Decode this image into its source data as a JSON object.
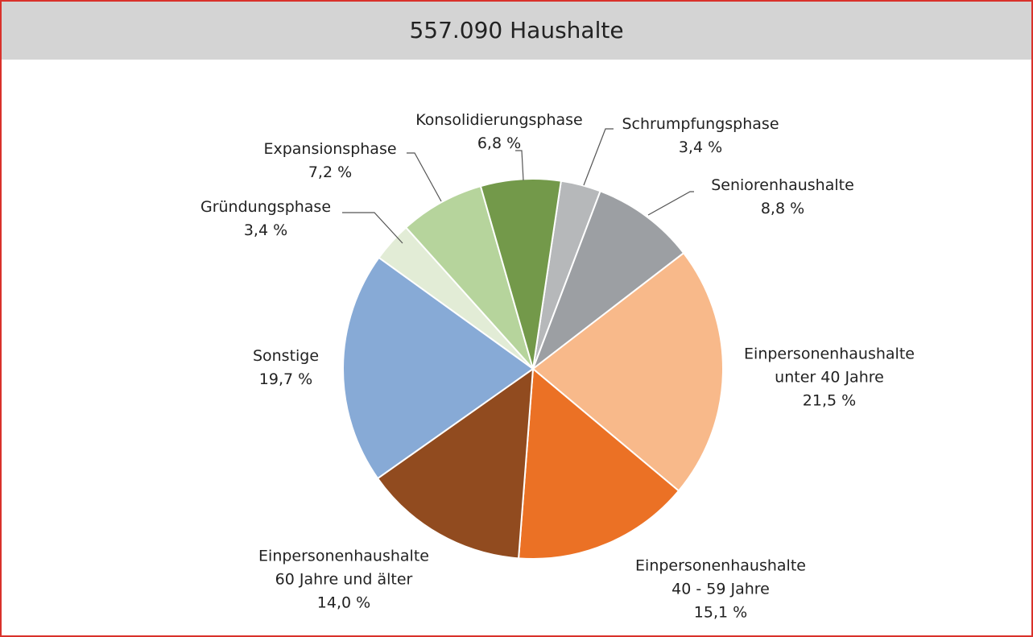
{
  "chart_data": {
    "type": "pie",
    "title": "557.090 Haushalte",
    "categories": [
      "Schrumpfungsphase",
      "Seniorenhaushalte",
      "Einpersonenhaushalte\nunter 40 Jahre",
      "Einpersonenhaushalte\n40 - 59 Jahre",
      "Einpersonenhaushalte\n60 Jahre und älter",
      "Sonstige",
      "Gründungsphase",
      "Expansionsphase",
      "Konsolidierungsphase"
    ],
    "values": [
      3.4,
      8.8,
      21.5,
      15.1,
      14.0,
      19.7,
      3.4,
      7.2,
      6.8
    ],
    "value_labels": [
      "3,4 %",
      "8,8 %",
      "21,5 %",
      "15,1 %",
      "14,0 %",
      "19,7 %",
      "3,4 %",
      "7,2 %",
      "6,8 %"
    ],
    "colors": [
      "#b6b8ba",
      "#9c9fa3",
      "#f8b98a",
      "#eb7125",
      "#914b1f",
      "#87aad6",
      "#e2ecd6",
      "#b6d49c",
      "#73994a"
    ]
  }
}
